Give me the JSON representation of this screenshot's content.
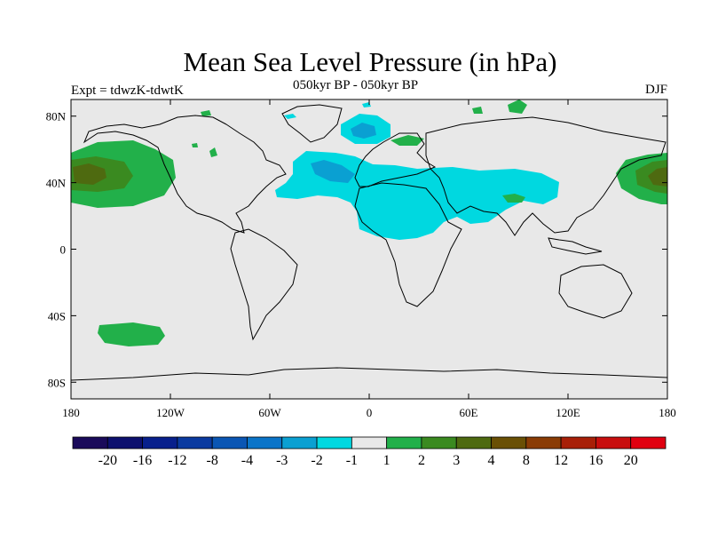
{
  "header": {
    "title": "Mean Sea Level Pressure (in hPa)",
    "left_label": "Expt = tdwzK-tdwtK",
    "center_label": "050kyr BP - 050kyr BP",
    "right_label": "DJF"
  },
  "map": {
    "projection": "cylindrical equidistant",
    "lon_range": [
      -180,
      180
    ],
    "lat_range": [
      -90,
      90
    ],
    "background_color": "#e8e8e8",
    "lon_ticks": [
      {
        "value": -180,
        "label": "180"
      },
      {
        "value": -120,
        "label": "120W"
      },
      {
        "value": -60,
        "label": "60W"
      },
      {
        "value": 0,
        "label": "0"
      },
      {
        "value": 60,
        "label": "60E"
      },
      {
        "value": 120,
        "label": "120E"
      },
      {
        "value": 180,
        "label": "180"
      }
    ],
    "lat_ticks": [
      {
        "value": 80,
        "label": "80N"
      },
      {
        "value": 40,
        "label": "40N"
      },
      {
        "value": 0,
        "label": "0"
      },
      {
        "value": -40,
        "label": "40S"
      },
      {
        "value": -80,
        "label": "80S"
      }
    ]
  },
  "colorbar": {
    "colors": [
      "#1a0a5a",
      "#0d106e",
      "#08208c",
      "#0a3aa0",
      "#0a56b4",
      "#0a74c8",
      "#0aa0d2",
      "#00d8e0",
      "#e8e8e8",
      "#22b04a",
      "#3a8a20",
      "#4e6a10",
      "#6a5005",
      "#8a3c05",
      "#a82008",
      "#c80e0e",
      "#e00010"
    ],
    "labels": [
      "-20",
      "-16",
      "-12",
      "-8",
      "-4",
      "-3",
      "-2",
      "-1",
      "1",
      "2",
      "3",
      "4",
      "8",
      "12",
      "16",
      "20"
    ]
  }
}
